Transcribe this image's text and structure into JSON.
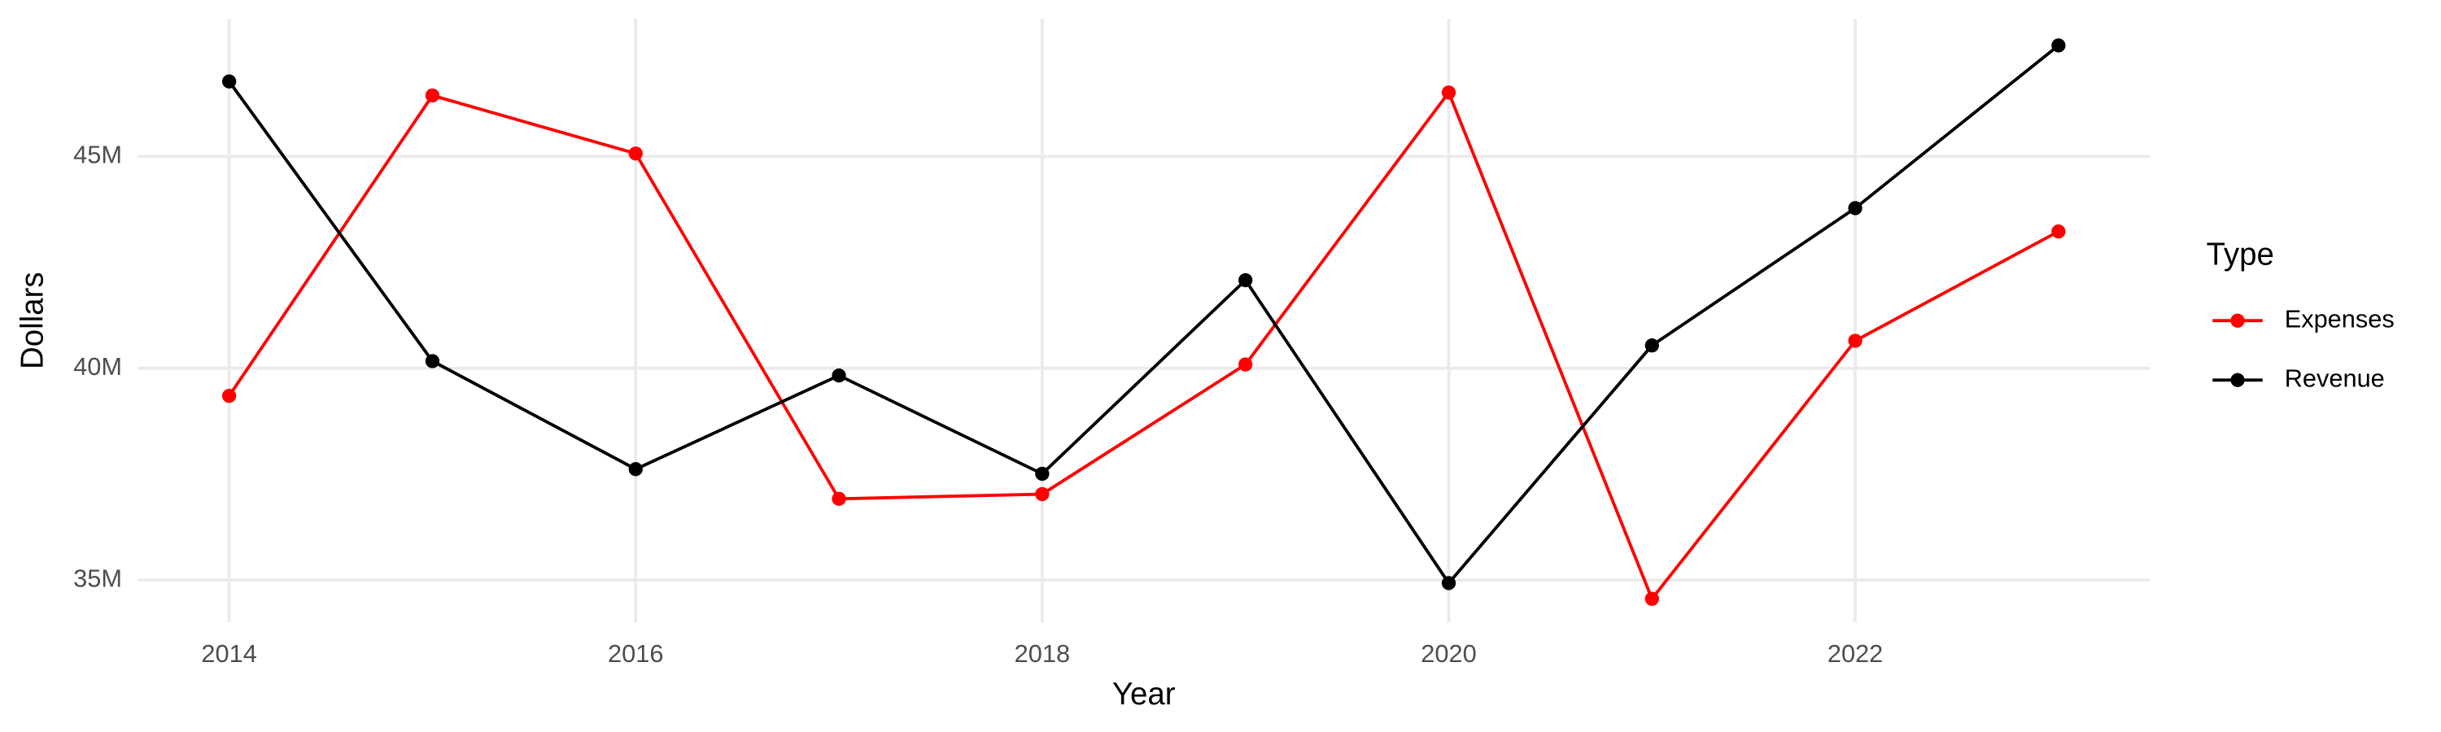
{
  "chart_data": {
    "type": "line",
    "x_label": "Year",
    "y_label": "Dollars",
    "legend_title": "Type",
    "x": [
      2014,
      2015,
      2016,
      2017,
      2018,
      2019,
      2020,
      2021,
      2022,
      2023
    ],
    "series": [
      {
        "name": "Expenses",
        "color": "#ff0000",
        "values": [
          39350000,
          46440000,
          45070000,
          36920000,
          37030000,
          40090000,
          46510000,
          34560000,
          40650000,
          43230000
        ]
      },
      {
        "name": "Revenue",
        "color": "#000000",
        "values": [
          46770000,
          40170000,
          37620000,
          39830000,
          37510000,
          42080000,
          34930000,
          40540000,
          43780000,
          47620000
        ]
      }
    ],
    "xlim": [
      2013.55,
      2023.45
    ],
    "xticks": [
      2014,
      2016,
      2018,
      2020,
      2022
    ],
    "ylim": [
      34000000,
      48250000
    ],
    "yticks": [
      {
        "value": 35000000,
        "label": "35M"
      },
      {
        "value": 40000000,
        "label": "40M"
      },
      {
        "value": 45000000,
        "label": "45M"
      }
    ],
    "grid": true,
    "legend": "right"
  }
}
